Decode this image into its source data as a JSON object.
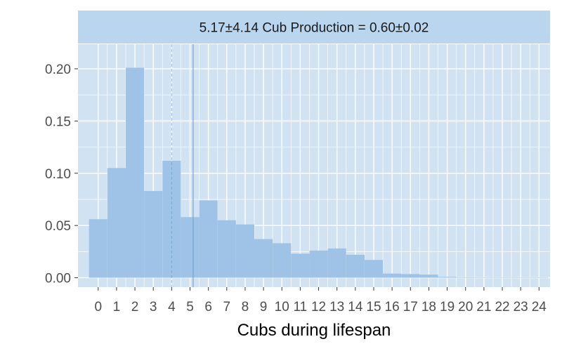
{
  "chart_data": {
    "type": "bar",
    "facet_label": "5.17±4.14 Cub Production = 0.60±0.02",
    "xlabel": "Cubs during lifespan",
    "ylabel": "",
    "x_ticks": [
      "0",
      "1",
      "2",
      "3",
      "4",
      "5",
      "6",
      "7",
      "8",
      "9",
      "10",
      "11",
      "12",
      "13",
      "14",
      "15",
      "16",
      "17",
      "18",
      "19",
      "20",
      "21",
      "22",
      "23",
      "24"
    ],
    "y_ticks": [
      "0.00",
      "0.05",
      "0.10",
      "0.15",
      "0.20"
    ],
    "ylim": [
      -0.009,
      0.2235
    ],
    "xlim": [
      -1.1,
      24.6
    ],
    "categories": [
      0,
      1,
      2,
      3,
      4,
      5,
      6,
      7,
      8,
      9,
      10,
      11,
      12,
      13,
      14,
      15,
      16,
      17,
      18,
      19,
      20,
      21,
      22,
      23,
      24
    ],
    "values": [
      0.056,
      0.105,
      0.201,
      0.083,
      0.112,
      0.058,
      0.074,
      0.055,
      0.051,
      0.037,
      0.033,
      0.023,
      0.026,
      0.028,
      0.022,
      0.017,
      0.004,
      0.0035,
      0.003,
      0.0008,
      0.0004,
      0.0002,
      0.0002,
      0.0001,
      0.0001
    ],
    "mean_line": 5.17,
    "median_line": 4,
    "grid": true,
    "colors": {
      "panel_bg": "#d1e2f3",
      "strip_bg": "#bad6ee",
      "grid": "#ffffff",
      "bar": "#9fc3e6",
      "line": "#6a9fd0"
    }
  }
}
